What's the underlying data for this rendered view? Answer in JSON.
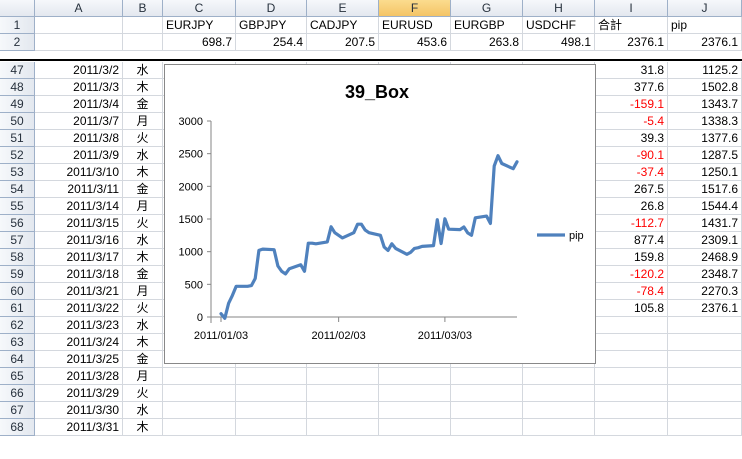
{
  "columns": [
    "A",
    "B",
    "C",
    "D",
    "E",
    "F",
    "G",
    "H",
    "I",
    "J"
  ],
  "selected_column": "F",
  "header_row": {
    "row": "1",
    "cells": [
      "",
      "",
      "EURJPY",
      "GBPJPY",
      "CADJPY",
      "EURUSD",
      "EURGBP",
      "USDCHF",
      "合計",
      "pip"
    ]
  },
  "totals_row": {
    "row": "2",
    "cells": [
      "",
      "",
      "698.7",
      "254.4",
      "207.5",
      "453.6",
      "263.8",
      "498.1",
      "2376.1",
      "2376.1"
    ]
  },
  "rows": [
    {
      "row": "47",
      "date": "2011/3/2",
      "day": "水",
      "total": "31.8",
      "pip": "1125.2",
      "neg": false
    },
    {
      "row": "48",
      "date": "2011/3/3",
      "day": "木",
      "total": "377.6",
      "pip": "1502.8",
      "neg": false
    },
    {
      "row": "49",
      "date": "2011/3/4",
      "day": "金",
      "total": "-159.1",
      "pip": "1343.7",
      "neg": true
    },
    {
      "row": "50",
      "date": "2011/3/7",
      "day": "月",
      "total": "-5.4",
      "pip": "1338.3",
      "neg": true
    },
    {
      "row": "51",
      "date": "2011/3/8",
      "day": "火",
      "total": "39.3",
      "pip": "1377.6",
      "neg": false
    },
    {
      "row": "52",
      "date": "2011/3/9",
      "day": "水",
      "total": "-90.1",
      "pip": "1287.5",
      "neg": true
    },
    {
      "row": "53",
      "date": "2011/3/10",
      "day": "木",
      "total": "-37.4",
      "pip": "1250.1",
      "neg": true
    },
    {
      "row": "54",
      "date": "2011/3/11",
      "day": "金",
      "total": "267.5",
      "pip": "1517.6",
      "neg": false
    },
    {
      "row": "55",
      "date": "2011/3/14",
      "day": "月",
      "total": "26.8",
      "pip": "1544.4",
      "neg": false
    },
    {
      "row": "56",
      "date": "2011/3/15",
      "day": "火",
      "total": "-112.7",
      "pip": "1431.7",
      "neg": true
    },
    {
      "row": "57",
      "date": "2011/3/16",
      "day": "水",
      "total": "877.4",
      "pip": "2309.1",
      "neg": false
    },
    {
      "row": "58",
      "date": "2011/3/17",
      "day": "木",
      "total": "159.8",
      "pip": "2468.9",
      "neg": false
    },
    {
      "row": "59",
      "date": "2011/3/18",
      "day": "金",
      "total": "-120.2",
      "pip": "2348.7",
      "neg": true
    },
    {
      "row": "60",
      "date": "2011/3/21",
      "day": "月",
      "total": "-78.4",
      "pip": "2270.3",
      "neg": true
    },
    {
      "row": "61",
      "date": "2011/3/22",
      "day": "火",
      "total": "105.8",
      "pip": "2376.1",
      "neg": false
    },
    {
      "row": "62",
      "date": "2011/3/23",
      "day": "水",
      "total": "",
      "pip": "",
      "neg": false
    },
    {
      "row": "63",
      "date": "2011/3/24",
      "day": "木",
      "total": "",
      "pip": "",
      "neg": false
    },
    {
      "row": "64",
      "date": "2011/3/25",
      "day": "金",
      "total": "",
      "pip": "",
      "neg": false
    },
    {
      "row": "65",
      "date": "2011/3/28",
      "day": "月",
      "total": "",
      "pip": "",
      "neg": false
    },
    {
      "row": "66",
      "date": "2011/3/29",
      "day": "火",
      "total": "",
      "pip": "",
      "neg": false
    },
    {
      "row": "67",
      "date": "2011/3/30",
      "day": "水",
      "total": "",
      "pip": "",
      "neg": false
    },
    {
      "row": "68",
      "date": "2011/3/31",
      "day": "木",
      "total": "",
      "pip": "",
      "neg": false
    }
  ],
  "colors": {
    "series": "#4f81bd",
    "negative": "#ff0000",
    "selected_header": "#f4c466"
  },
  "chart_data": {
    "type": "line",
    "title": "39_Box",
    "ylim": [
      0,
      3000
    ],
    "yticks": [
      "3000",
      "2500",
      "2000",
      "1500",
      "1000",
      "500",
      "0"
    ],
    "xticks": [
      "2011/01/03",
      "2011/02/03",
      "2011/03/03"
    ],
    "legend": "right",
    "series": [
      {
        "name": "pip",
        "x": [
          "2011-01-03",
          "2011-01-04",
          "2011-01-05",
          "2011-01-06",
          "2011-01-07",
          "2011-01-10",
          "2011-01-11",
          "2011-01-12",
          "2011-01-13",
          "2011-01-14",
          "2011-01-17",
          "2011-01-18",
          "2011-01-19",
          "2011-01-20",
          "2011-01-21",
          "2011-01-24",
          "2011-01-25",
          "2011-01-26",
          "2011-01-27",
          "2011-01-28",
          "2011-01-31",
          "2011-02-01",
          "2011-02-02",
          "2011-02-03",
          "2011-02-04",
          "2011-02-07",
          "2011-02-08",
          "2011-02-09",
          "2011-02-10",
          "2011-02-11",
          "2011-02-14",
          "2011-02-15",
          "2011-02-16",
          "2011-02-17",
          "2011-02-18",
          "2011-02-21",
          "2011-02-22",
          "2011-02-23",
          "2011-02-24",
          "2011-02-25",
          "2011-02-28",
          "2011-03-01",
          "2011-03-02",
          "2011-03-03",
          "2011-03-04",
          "2011-03-07",
          "2011-03-08",
          "2011-03-09",
          "2011-03-10",
          "2011-03-11",
          "2011-03-14",
          "2011-03-15",
          "2011-03-16",
          "2011-03-17",
          "2011-03-18",
          "2011-03-21",
          "2011-03-22"
        ],
        "y": [
          50,
          -20,
          210,
          330,
          470,
          470,
          480,
          590,
          1020,
          1040,
          1030,
          780,
          700,
          660,
          740,
          800,
          700,
          1130,
          1130,
          1120,
          1150,
          1380,
          1290,
          1250,
          1210,
          1290,
          1420,
          1420,
          1330,
          1290,
          1250,
          1070,
          1020,
          1120,
          1050,
          960,
          990,
          1050,
          1060,
          1080,
          1093,
          1490,
          1125,
          1503,
          1344,
          1338,
          1378,
          1288,
          1250,
          1518,
          1544,
          1432,
          2309,
          2469,
          2349,
          2270,
          2376
        ]
      }
    ]
  }
}
